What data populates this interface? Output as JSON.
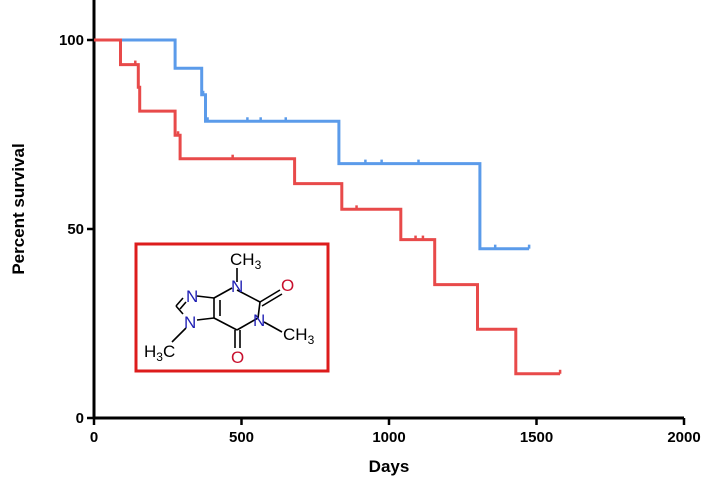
{
  "chart_data": {
    "type": "line",
    "title": "",
    "xlabel": "Days",
    "ylabel": "Percent survival",
    "xlim": [
      0,
      2000
    ],
    "ylim": [
      0,
      100
    ],
    "xticks": [
      "0",
      "500",
      "1000",
      "1500",
      "2000"
    ],
    "yticks": [
      "0",
      "50",
      "100"
    ],
    "grid": false,
    "series": [
      {
        "color": "#5b9bea",
        "steps": [
          {
            "x": 0,
            "y": 100
          },
          {
            "x": 275,
            "y": 100
          },
          {
            "x": 275,
            "y": 92.5
          },
          {
            "x": 365,
            "y": 92.5
          },
          {
            "x": 365,
            "y": 85.5
          },
          {
            "x": 378,
            "y": 85.5
          },
          {
            "x": 378,
            "y": 78.5
          },
          {
            "x": 830,
            "y": 78.5
          },
          {
            "x": 830,
            "y": 67.3
          },
          {
            "x": 1308,
            "y": 67.3
          },
          {
            "x": 1308,
            "y": 44.8
          },
          {
            "x": 1475,
            "y": 44.8
          }
        ],
        "censored": [
          {
            "x": 370,
            "y": 85.5
          },
          {
            "x": 385,
            "y": 78.5
          },
          {
            "x": 520,
            "y": 78.5
          },
          {
            "x": 565,
            "y": 78.5
          },
          {
            "x": 650,
            "y": 78.5
          },
          {
            "x": 920,
            "y": 67.3
          },
          {
            "x": 975,
            "y": 67.3
          },
          {
            "x": 1100,
            "y": 67.3
          },
          {
            "x": 1360,
            "y": 44.8
          },
          {
            "x": 1475,
            "y": 44.8
          }
        ]
      },
      {
        "color": "#e84a4a",
        "steps": [
          {
            "x": 0,
            "y": 100
          },
          {
            "x": 90,
            "y": 100
          },
          {
            "x": 90,
            "y": 93.5
          },
          {
            "x": 150,
            "y": 93.5
          },
          {
            "x": 150,
            "y": 87.5
          },
          {
            "x": 155,
            "y": 87.5
          },
          {
            "x": 155,
            "y": 81.2
          },
          {
            "x": 275,
            "y": 81.2
          },
          {
            "x": 275,
            "y": 74.8
          },
          {
            "x": 292,
            "y": 74.8
          },
          {
            "x": 292,
            "y": 68.6
          },
          {
            "x": 680,
            "y": 68.6
          },
          {
            "x": 680,
            "y": 62.0
          },
          {
            "x": 840,
            "y": 62.0
          },
          {
            "x": 840,
            "y": 55.2
          },
          {
            "x": 1040,
            "y": 55.2
          },
          {
            "x": 1040,
            "y": 47.2
          },
          {
            "x": 1155,
            "y": 47.2
          },
          {
            "x": 1155,
            "y": 35.3
          },
          {
            "x": 1300,
            "y": 35.3
          },
          {
            "x": 1300,
            "y": 23.5
          },
          {
            "x": 1430,
            "y": 23.5
          },
          {
            "x": 1430,
            "y": 11.7
          },
          {
            "x": 1580,
            "y": 11.7
          }
        ],
        "censored": [
          {
            "x": 140,
            "y": 93.5
          },
          {
            "x": 285,
            "y": 74.8
          },
          {
            "x": 470,
            "y": 68.6
          },
          {
            "x": 890,
            "y": 55.2
          },
          {
            "x": 1090,
            "y": 47.2
          },
          {
            "x": 1115,
            "y": 47.2
          },
          {
            "x": 1580,
            "y": 11.7
          }
        ]
      }
    ]
  },
  "inset": {
    "border_color": "#dd1c1c",
    "atom_labels": {
      "n1": "N",
      "n3": "N",
      "n7": "N",
      "n9": "N",
      "o2": "O",
      "o6": "O",
      "ch3_top": "CH",
      "ch3_top_sub": "3",
      "ch3_right": "CH",
      "ch3_right_sub": "3",
      "ch3_left": "H",
      "ch3_left_sub": "3",
      "ch3_left_c": "C"
    },
    "colors": {
      "nitrogen": "#1f1fb4",
      "oxygen": "#c8102e",
      "carbon": "#000000"
    }
  }
}
